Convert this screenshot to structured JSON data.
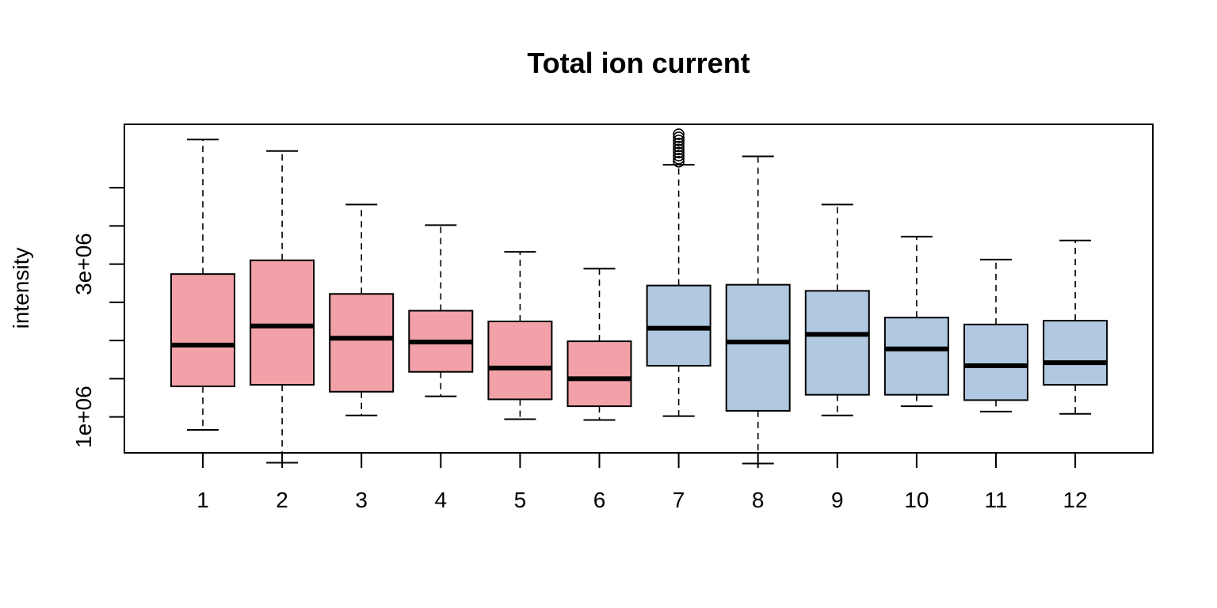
{
  "chart_data": {
    "type": "boxplot",
    "title": "Total ion current",
    "xlabel": "",
    "ylabel": "intensity",
    "categories": [
      "1",
      "2",
      "3",
      "4",
      "5",
      "6",
      "7",
      "8",
      "9",
      "10",
      "11",
      "12"
    ],
    "y_tick_labels": [
      "1e+06",
      "3e+06"
    ],
    "ylim": [
      530000.0,
      4830000.0
    ],
    "grid": false,
    "colors": {
      "group_a": "#F2A1A8",
      "group_b": "#B0C8E0",
      "stroke": "#000000"
    },
    "boxes": [
      {
        "label": "1",
        "whisker_low": 830000.0,
        "q1": 1400000.0,
        "median": 1940000.0,
        "q3": 2870000.0,
        "whisker_high": 4630000.0,
        "group": "a",
        "outliers": []
      },
      {
        "label": "2",
        "whisker_low": 400000.0,
        "q1": 1420000.0,
        "median": 2190000.0,
        "q3": 3050000.0,
        "whisker_high": 4480000.0,
        "group": "a",
        "outliers": []
      },
      {
        "label": "3",
        "whisker_low": 1020000.0,
        "q1": 1330000.0,
        "median": 2030000.0,
        "q3": 2610000.0,
        "whisker_high": 3780000.0,
        "group": "a",
        "outliers": []
      },
      {
        "label": "4",
        "whisker_low": 1270000.0,
        "q1": 1590000.0,
        "median": 1980000.0,
        "q3": 2390000.0,
        "whisker_high": 3510000.0,
        "group": "a",
        "outliers": []
      },
      {
        "label": "5",
        "whisker_low": 970000.0,
        "q1": 1230000.0,
        "median": 1640000.0,
        "q3": 2250000.0,
        "whisker_high": 3160000.0,
        "group": "a",
        "outliers": []
      },
      {
        "label": "6",
        "whisker_low": 960000.0,
        "q1": 1140000.0,
        "median": 1500000.0,
        "q3": 1990000.0,
        "whisker_high": 2940000.0,
        "group": "a",
        "outliers": []
      },
      {
        "label": "7",
        "whisker_low": 1010000.0,
        "q1": 1670000.0,
        "median": 2160000.0,
        "q3": 2720000.0,
        "whisker_high": 4300000.0,
        "group": "b",
        "outliers": [
          4340000.0,
          4380000.0,
          4420000.0,
          4460000.0,
          4500000.0,
          4540000.0,
          4580000.0,
          4620000.0,
          4660000.0,
          4700000.0
        ]
      },
      {
        "label": "8",
        "whisker_low": 390000.0,
        "q1": 1080000.0,
        "median": 1980000.0,
        "q3": 2730000.0,
        "whisker_high": 4410000.0,
        "group": "b",
        "outliers": []
      },
      {
        "label": "9",
        "whisker_low": 1020000.0,
        "q1": 1290000.0,
        "median": 2080000.0,
        "q3": 2650000.0,
        "whisker_high": 3780000.0,
        "group": "b",
        "outliers": []
      },
      {
        "label": "10",
        "whisker_low": 1140000.0,
        "q1": 1290000.0,
        "median": 1890000.0,
        "q3": 2300000.0,
        "whisker_high": 3360000.0,
        "group": "b",
        "outliers": []
      },
      {
        "label": "11",
        "whisker_low": 1070000.0,
        "q1": 1220000.0,
        "median": 1670000.0,
        "q3": 2210000.0,
        "whisker_high": 3060000.0,
        "group": "b",
        "outliers": []
      },
      {
        "label": "12",
        "whisker_low": 1040000.0,
        "q1": 1420000.0,
        "median": 1710000.0,
        "q3": 2260000.0,
        "whisker_high": 3310000.0,
        "group": "b",
        "outliers": []
      }
    ]
  }
}
